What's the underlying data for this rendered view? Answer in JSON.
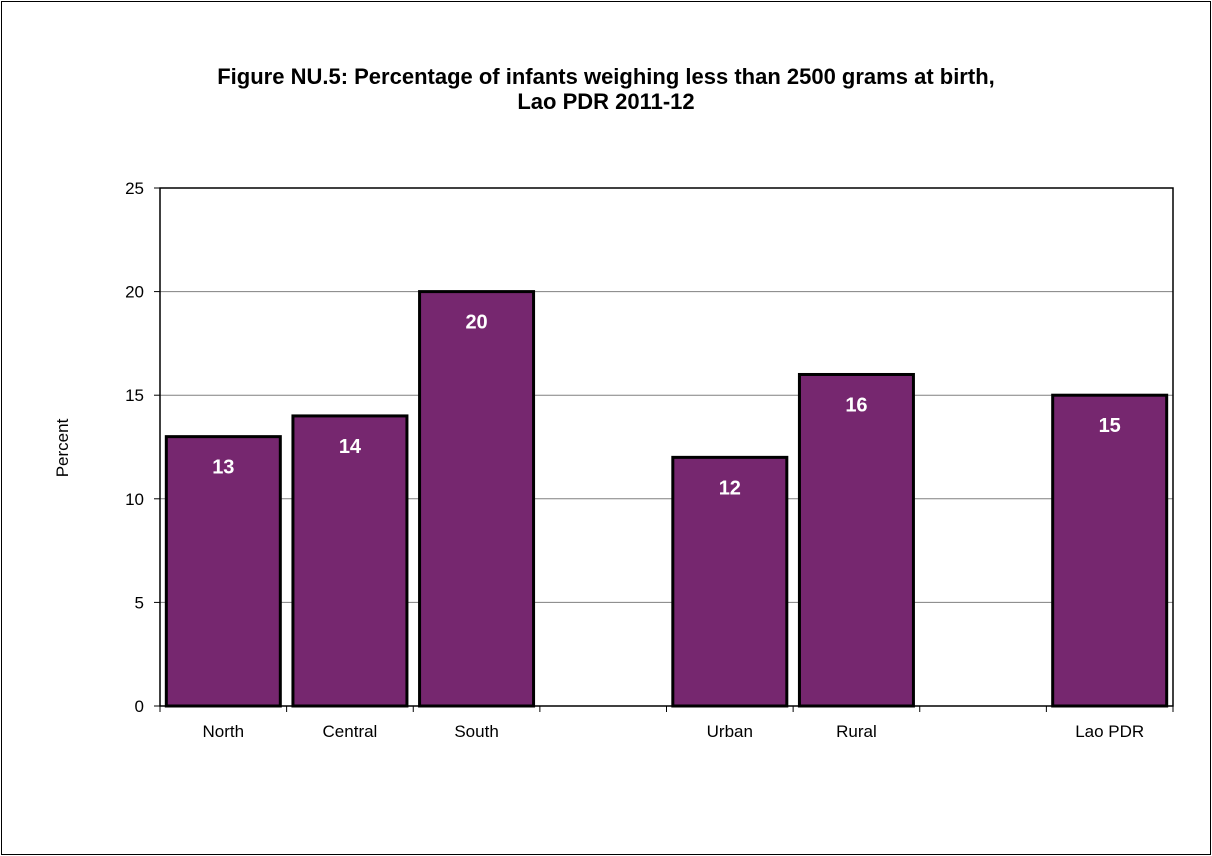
{
  "chart_data": {
    "type": "bar",
    "title_line1": "Figure NU.5: Percentage of infants weighing less than 2500 grams at birth,",
    "title_line2": "Lao PDR 2011-12",
    "ylabel": "Percent",
    "xlabel": "",
    "ylim": [
      0,
      25
    ],
    "yticks": [
      0,
      5,
      10,
      15,
      20,
      25
    ],
    "grid": true,
    "categories": [
      "North",
      "Central",
      "South",
      "",
      "Urban",
      "Rural",
      "",
      "Lao PDR"
    ],
    "values": [
      13,
      14,
      20,
      null,
      12,
      16,
      null,
      15
    ],
    "data_labels": [
      "13",
      "14",
      "20",
      "",
      "12",
      "16",
      "",
      "15"
    ],
    "bar_color": "#76276F",
    "label_color": "#ffffff"
  }
}
